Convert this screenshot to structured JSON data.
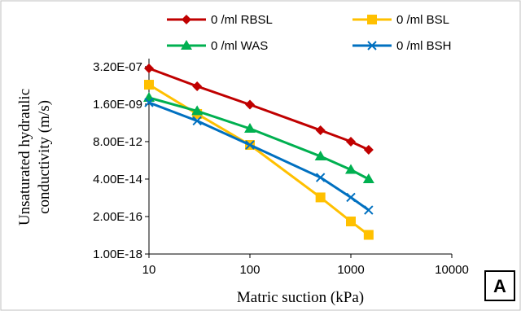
{
  "chart_data": {
    "type": "line",
    "title": "",
    "xlabel": "Matric suction (kPa)",
    "ylabel": "Unsaturated  hydraulic conductivity (m/s)",
    "x_scale": "log",
    "y_scale": "log",
    "xlim": [
      10,
      10000
    ],
    "ylim": [
      1e-18,
      1e-06
    ],
    "x_tick_labels": [
      "10",
      "100",
      "1000",
      "10000"
    ],
    "x_ticks": [
      10,
      100,
      1000,
      10000
    ],
    "y_tick_labels": [
      "1.00E-18",
      "2.00E-16",
      "4.00E-14",
      "8.00E-12",
      "1.60E-09",
      "3.20E-07"
    ],
    "y_ticks": [
      1e-18,
      2e-16,
      4e-14,
      8e-12,
      1.6e-09,
      3.2e-07
    ],
    "grid": false,
    "legend_position": "top",
    "panel_label": "A",
    "series": [
      {
        "name": "0 /ml RBSL",
        "color": "#c00000",
        "marker": "diamond",
        "x": [
          10,
          30,
          100,
          500,
          1000,
          1500
        ],
        "y": [
          2.5e-07,
          2e-08,
          1.5e-09,
          4e-11,
          8e-12,
          2.5e-12
        ]
      },
      {
        "name": "0 /ml BSL",
        "color": "#ffc000",
        "marker": "square",
        "x": [
          10,
          30,
          100,
          500,
          1000,
          1500
        ],
        "y": [
          2.5e-08,
          4e-10,
          5e-12,
          3e-15,
          1e-16,
          1.5e-17
        ]
      },
      {
        "name": "0 /ml WAS",
        "color": "#00b050",
        "marker": "triangle",
        "x": [
          10,
          30,
          100,
          500,
          1000,
          1500
        ],
        "y": [
          4e-09,
          6e-10,
          5e-11,
          1e-12,
          1.5e-13,
          4e-14
        ]
      },
      {
        "name": "0 /ml BSH",
        "color": "#0070c0",
        "marker": "x",
        "x": [
          10,
          30,
          100,
          500,
          1000,
          1500
        ],
        "y": [
          2e-09,
          1.5e-10,
          5e-12,
          5e-14,
          3e-15,
          5e-16
        ]
      }
    ]
  }
}
